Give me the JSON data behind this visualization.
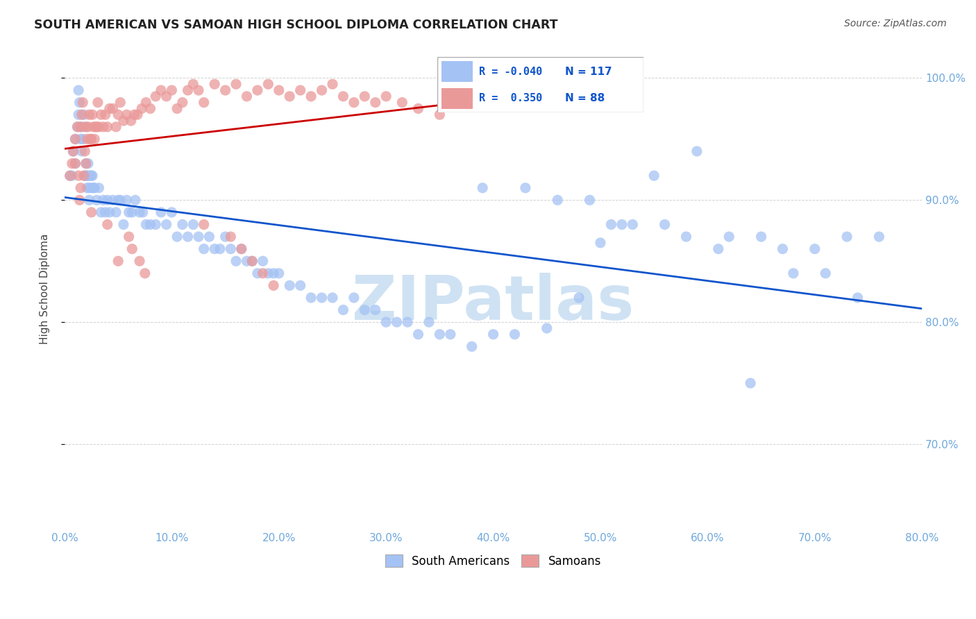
{
  "title": "SOUTH AMERICAN VS SAMOAN HIGH SCHOOL DIPLOMA CORRELATION CHART",
  "source": "Source: ZipAtlas.com",
  "ylabel": "High School Diploma",
  "xlim": [
    0.0,
    0.8
  ],
  "ylim": [
    0.63,
    1.025
  ],
  "legend_blue_R": "-0.040",
  "legend_blue_N": "117",
  "legend_pink_R": "0.350",
  "legend_pink_N": "88",
  "blue_color": "#a4c2f4",
  "pink_color": "#ea9999",
  "blue_line_color": "#1155cc",
  "pink_line_color": "#cc0000",
  "label_color": "#6fa8dc",
  "watermark": "ZIPatlas",
  "watermark_color": "#cfe2f3",
  "blue_scatter_x": [
    0.005,
    0.007,
    0.008,
    0.01,
    0.01,
    0.012,
    0.013,
    0.013,
    0.014,
    0.015,
    0.015,
    0.016,
    0.017,
    0.018,
    0.018,
    0.019,
    0.02,
    0.02,
    0.021,
    0.021,
    0.022,
    0.022,
    0.023,
    0.023,
    0.024,
    0.025,
    0.025,
    0.026,
    0.027,
    0.028,
    0.03,
    0.032,
    0.034,
    0.036,
    0.038,
    0.04,
    0.042,
    0.045,
    0.048,
    0.05,
    0.052,
    0.055,
    0.058,
    0.06,
    0.063,
    0.066,
    0.07,
    0.073,
    0.076,
    0.08,
    0.085,
    0.09,
    0.095,
    0.1,
    0.105,
    0.11,
    0.115,
    0.12,
    0.125,
    0.13,
    0.135,
    0.14,
    0.145,
    0.15,
    0.155,
    0.16,
    0.165,
    0.17,
    0.175,
    0.18,
    0.185,
    0.19,
    0.195,
    0.2,
    0.21,
    0.22,
    0.23,
    0.24,
    0.25,
    0.26,
    0.27,
    0.28,
    0.29,
    0.3,
    0.31,
    0.32,
    0.33,
    0.34,
    0.35,
    0.36,
    0.38,
    0.4,
    0.42,
    0.45,
    0.48,
    0.5,
    0.52,
    0.55,
    0.59,
    0.62,
    0.65,
    0.68,
    0.71,
    0.74,
    0.39,
    0.43,
    0.46,
    0.49,
    0.51,
    0.53,
    0.56,
    0.58,
    0.61,
    0.64,
    0.67,
    0.7,
    0.73,
    0.76
  ],
  "blue_scatter_y": [
    0.92,
    0.92,
    0.94,
    0.93,
    0.95,
    0.96,
    0.97,
    0.99,
    0.98,
    0.96,
    0.95,
    0.94,
    0.95,
    0.96,
    0.97,
    0.92,
    0.93,
    0.92,
    0.92,
    0.91,
    0.93,
    0.92,
    0.91,
    0.9,
    0.92,
    0.91,
    0.92,
    0.92,
    0.91,
    0.91,
    0.9,
    0.91,
    0.89,
    0.9,
    0.89,
    0.9,
    0.89,
    0.9,
    0.89,
    0.9,
    0.9,
    0.88,
    0.9,
    0.89,
    0.89,
    0.9,
    0.89,
    0.89,
    0.88,
    0.88,
    0.88,
    0.89,
    0.88,
    0.89,
    0.87,
    0.88,
    0.87,
    0.88,
    0.87,
    0.86,
    0.87,
    0.86,
    0.86,
    0.87,
    0.86,
    0.85,
    0.86,
    0.85,
    0.85,
    0.84,
    0.85,
    0.84,
    0.84,
    0.84,
    0.83,
    0.83,
    0.82,
    0.82,
    0.82,
    0.81,
    0.82,
    0.81,
    0.81,
    0.8,
    0.8,
    0.8,
    0.79,
    0.8,
    0.79,
    0.79,
    0.78,
    0.79,
    0.79,
    0.795,
    0.82,
    0.865,
    0.88,
    0.92,
    0.94,
    0.87,
    0.87,
    0.84,
    0.84,
    0.82,
    0.91,
    0.91,
    0.9,
    0.9,
    0.88,
    0.88,
    0.88,
    0.87,
    0.86,
    0.75,
    0.86,
    0.86,
    0.87,
    0.87
  ],
  "pink_scatter_x": [
    0.005,
    0.007,
    0.008,
    0.01,
    0.01,
    0.012,
    0.013,
    0.014,
    0.015,
    0.015,
    0.016,
    0.017,
    0.018,
    0.019,
    0.02,
    0.02,
    0.021,
    0.022,
    0.023,
    0.024,
    0.025,
    0.026,
    0.027,
    0.028,
    0.029,
    0.03,
    0.031,
    0.032,
    0.034,
    0.036,
    0.038,
    0.04,
    0.042,
    0.045,
    0.048,
    0.05,
    0.052,
    0.055,
    0.058,
    0.062,
    0.065,
    0.068,
    0.072,
    0.076,
    0.08,
    0.085,
    0.09,
    0.095,
    0.1,
    0.105,
    0.11,
    0.115,
    0.12,
    0.125,
    0.13,
    0.14,
    0.15,
    0.16,
    0.17,
    0.18,
    0.19,
    0.2,
    0.21,
    0.22,
    0.23,
    0.24,
    0.25,
    0.26,
    0.27,
    0.28,
    0.29,
    0.3,
    0.315,
    0.33,
    0.35,
    0.06,
    0.063,
    0.07,
    0.075,
    0.13,
    0.155,
    0.165,
    0.175,
    0.185,
    0.195,
    0.025,
    0.04,
    0.05
  ],
  "pink_scatter_y": [
    0.92,
    0.93,
    0.94,
    0.93,
    0.95,
    0.96,
    0.92,
    0.9,
    0.91,
    0.96,
    0.97,
    0.98,
    0.92,
    0.94,
    0.93,
    0.96,
    0.95,
    0.96,
    0.97,
    0.95,
    0.95,
    0.97,
    0.96,
    0.95,
    0.96,
    0.96,
    0.98,
    0.96,
    0.97,
    0.96,
    0.97,
    0.96,
    0.975,
    0.975,
    0.96,
    0.97,
    0.98,
    0.965,
    0.97,
    0.965,
    0.97,
    0.97,
    0.975,
    0.98,
    0.975,
    0.985,
    0.99,
    0.985,
    0.99,
    0.975,
    0.98,
    0.99,
    0.995,
    0.99,
    0.98,
    0.995,
    0.99,
    0.995,
    0.985,
    0.99,
    0.995,
    0.99,
    0.985,
    0.99,
    0.985,
    0.99,
    0.995,
    0.985,
    0.98,
    0.985,
    0.98,
    0.985,
    0.98,
    0.975,
    0.97,
    0.87,
    0.86,
    0.85,
    0.84,
    0.88,
    0.87,
    0.86,
    0.85,
    0.84,
    0.83,
    0.89,
    0.88,
    0.85
  ]
}
